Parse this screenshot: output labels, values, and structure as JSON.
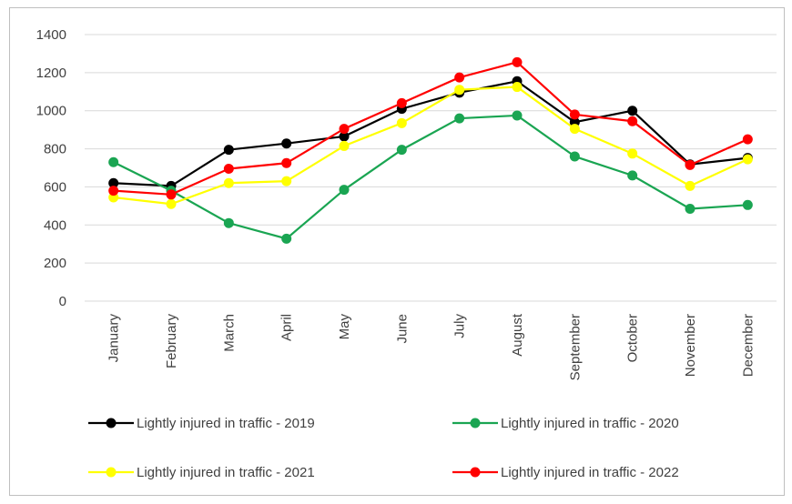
{
  "chart_data": {
    "type": "line",
    "categories": [
      "January",
      "February",
      "March",
      "April",
      "May",
      "June",
      "July",
      "August",
      "September",
      "October",
      "November",
      "December"
    ],
    "series": [
      {
        "name": "Lightly injured in traffic - 2019",
        "color": "#000000",
        "values": [
          620,
          605,
          795,
          828,
          865,
          1010,
          1095,
          1155,
          940,
          1000,
          718,
          752
        ]
      },
      {
        "name": "Lightly injured in traffic - 2020",
        "color": "#1aa552",
        "values": [
          730,
          580,
          410,
          328,
          585,
          795,
          960,
          975,
          760,
          660,
          485,
          505
        ]
      },
      {
        "name": "Lightly injured in traffic - 2021",
        "color": "#ffff00",
        "values": [
          545,
          510,
          620,
          630,
          815,
          935,
          1110,
          1125,
          905,
          775,
          605,
          745
        ]
      },
      {
        "name": "Lightly injured in traffic - 2022",
        "color": "#ff0000",
        "values": [
          580,
          560,
          695,
          725,
          905,
          1040,
          1175,
          1255,
          980,
          945,
          715,
          850
        ]
      }
    ],
    "ylim": [
      0,
      1400
    ],
    "yticks": [
      0,
      200,
      400,
      600,
      800,
      1000,
      1200,
      1400
    ],
    "grid": true
  }
}
